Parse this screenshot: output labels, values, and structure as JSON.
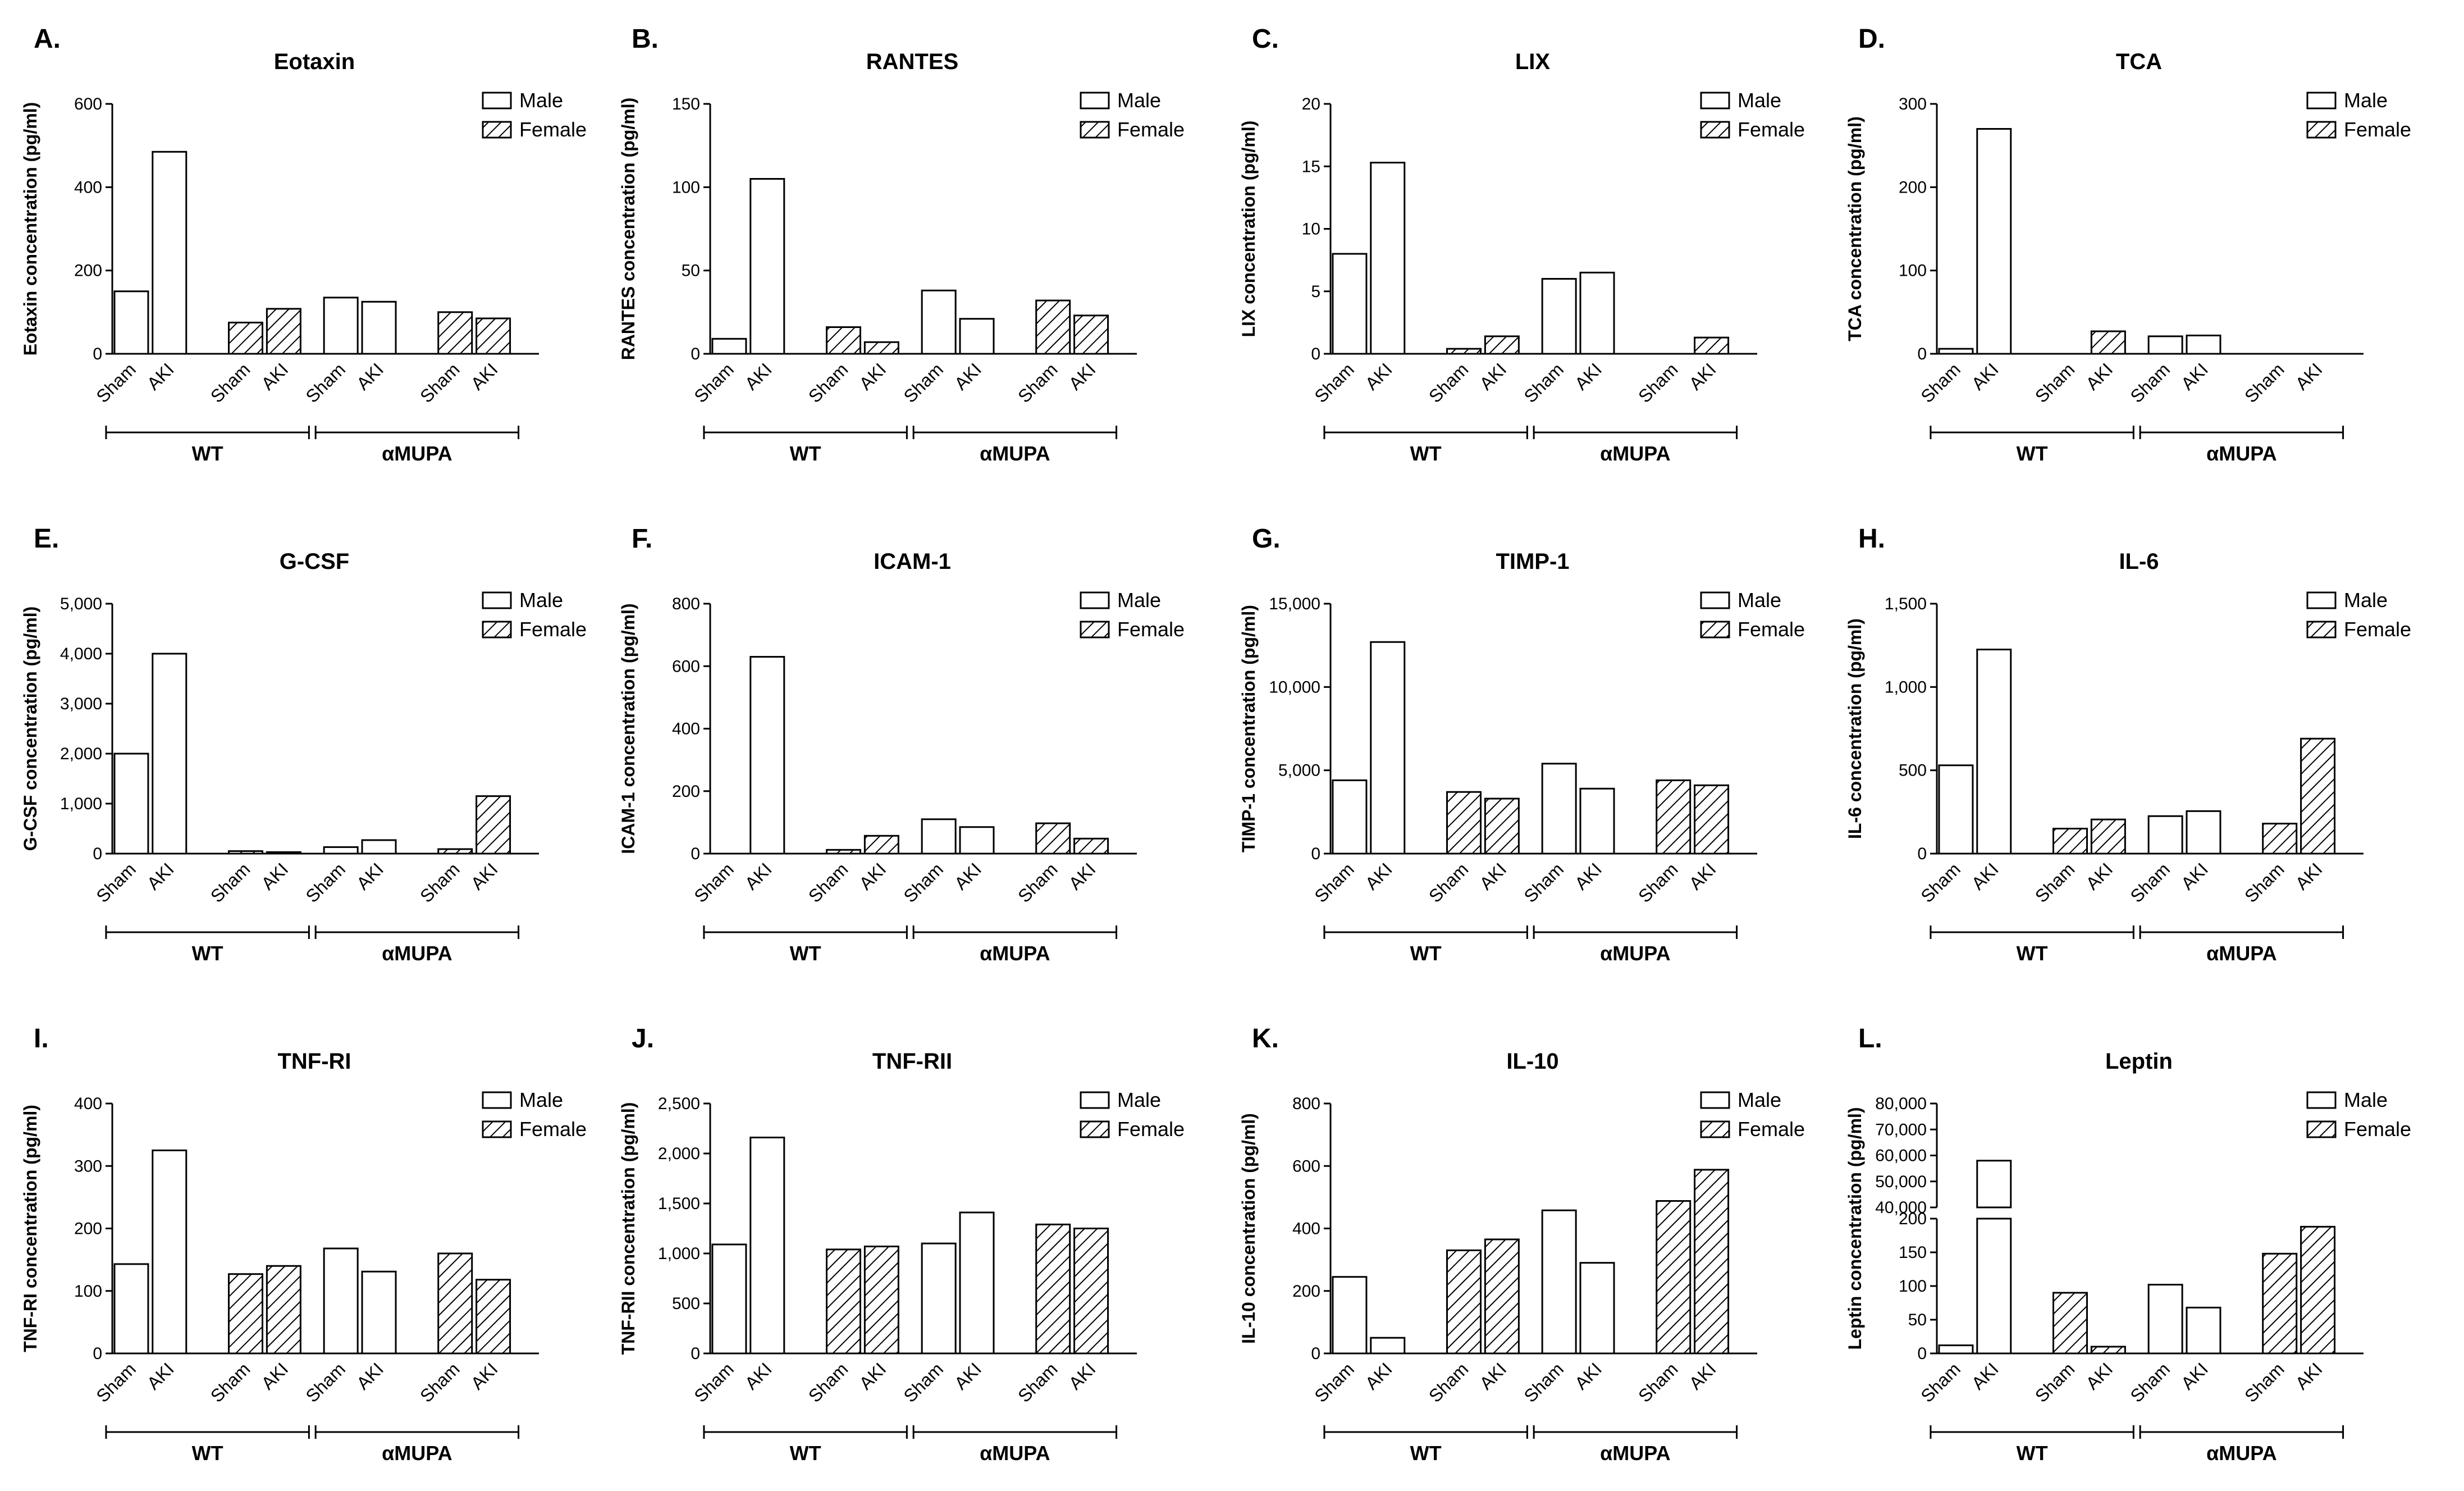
{
  "legend": {
    "male": "Male",
    "female": "Female",
    "male_color": "#ffffff",
    "female_pattern": "hatch"
  },
  "groups": [
    "WT",
    "αMUPA"
  ],
  "chart_data": [
    {
      "id": "A",
      "panel_label": "A.",
      "type": "bar",
      "title": "Eotaxin",
      "ylabel": "Eotaxin concentration (pg/ml)",
      "ylim": [
        0,
        600
      ],
      "yticks": [
        "0",
        "200",
        "400",
        "600"
      ],
      "categories": [
        "Sham",
        "AKI",
        "Sham",
        "AKI",
        "Sham",
        "AKI",
        "Sham",
        "AKI"
      ],
      "sex": [
        "Male",
        "Male",
        "Female",
        "Female",
        "Male",
        "Male",
        "Female",
        "Female"
      ],
      "values": [
        150,
        485,
        75,
        108,
        135,
        125,
        100,
        85
      ]
    },
    {
      "id": "B",
      "panel_label": "B.",
      "type": "bar",
      "title": "RANTES",
      "ylabel": "RANTES concentration (pg/ml)",
      "ylim": [
        0,
        150
      ],
      "yticks": [
        "0",
        "50",
        "100",
        "150"
      ],
      "categories": [
        "Sham",
        "AKI",
        "Sham",
        "AKI",
        "Sham",
        "AKI",
        "Sham",
        "AKI"
      ],
      "sex": [
        "Male",
        "Male",
        "Female",
        "Female",
        "Male",
        "Male",
        "Female",
        "Female"
      ],
      "values": [
        9,
        105,
        16,
        7,
        38,
        21,
        32,
        23
      ]
    },
    {
      "id": "C",
      "panel_label": "C.",
      "type": "bar",
      "title": "LIX",
      "ylabel": "LIX concentration (pg/ml)",
      "ylim": [
        0,
        20
      ],
      "yticks": [
        "0",
        "5",
        "10",
        "15",
        "20"
      ],
      "categories": [
        "Sham",
        "AKI",
        "Sham",
        "AKI",
        "Sham",
        "AKI",
        "Sham",
        "AKI"
      ],
      "sex": [
        "Male",
        "Male",
        "Female",
        "Female",
        "Male",
        "Male",
        "Female",
        "Female"
      ],
      "values": [
        8.0,
        15.3,
        0.4,
        1.4,
        6.0,
        6.5,
        0,
        1.3
      ]
    },
    {
      "id": "D",
      "panel_label": "D.",
      "type": "bar",
      "title": "TCA",
      "ylabel": "TCA concentration (pg/ml)",
      "ylim": [
        0,
        300
      ],
      "yticks": [
        "0",
        "100",
        "200",
        "300"
      ],
      "categories": [
        "Sham",
        "AKI",
        "Sham",
        "AKI",
        "Sham",
        "AKI",
        "Sham",
        "AKI"
      ],
      "sex": [
        "Male",
        "Male",
        "Female",
        "Female",
        "Male",
        "Male",
        "Female",
        "Female"
      ],
      "values": [
        6,
        270,
        0,
        27,
        21,
        22,
        0,
        0
      ]
    },
    {
      "id": "E",
      "panel_label": "E.",
      "type": "bar",
      "title": "G-CSF",
      "ylabel": "G-CSF concentration (pg/ml)",
      "ylim": [
        0,
        5000
      ],
      "yticks": [
        "0",
        "1,000",
        "2,000",
        "3,000",
        "4,000",
        "5,000"
      ],
      "categories": [
        "Sham",
        "AKI",
        "Sham",
        "AKI",
        "Sham",
        "AKI",
        "Sham",
        "AKI"
      ],
      "sex": [
        "Male",
        "Male",
        "Female",
        "Female",
        "Male",
        "Male",
        "Female",
        "Female"
      ],
      "values": [
        2000,
        4000,
        50,
        30,
        130,
        270,
        90,
        1150
      ]
    },
    {
      "id": "F",
      "panel_label": "F.",
      "type": "bar",
      "title": "ICAM-1",
      "ylabel": "ICAM-1 concentration (pg/ml)",
      "ylim": [
        0,
        800
      ],
      "yticks": [
        "0",
        "200",
        "400",
        "600",
        "800"
      ],
      "categories": [
        "Sham",
        "AKI",
        "Sham",
        "AKI",
        "Sham",
        "AKI",
        "Sham",
        "AKI"
      ],
      "sex": [
        "Male",
        "Male",
        "Female",
        "Female",
        "Male",
        "Male",
        "Female",
        "Female"
      ],
      "values": [
        0,
        630,
        12,
        57,
        110,
        85,
        97,
        48
      ]
    },
    {
      "id": "G",
      "panel_label": "G.",
      "type": "bar",
      "title": "TIMP-1",
      "ylabel": "TIMP-1 concentration (pg/ml)",
      "ylim": [
        0,
        15000
      ],
      "yticks": [
        "0",
        "5,000",
        "10,000",
        "15,000"
      ],
      "categories": [
        "Sham",
        "AKI",
        "Sham",
        "AKI",
        "Sham",
        "AKI",
        "Sham",
        "AKI"
      ],
      "sex": [
        "Male",
        "Male",
        "Female",
        "Female",
        "Male",
        "Male",
        "Female",
        "Female"
      ],
      "values": [
        4400,
        12700,
        3700,
        3300,
        5400,
        3900,
        4400,
        4100
      ]
    },
    {
      "id": "H",
      "panel_label": "H.",
      "type": "bar",
      "title": "IL-6",
      "ylabel": "IL-6 concentration (pg/ml)",
      "ylim": [
        0,
        1500
      ],
      "yticks": [
        "0",
        "500",
        "1,000",
        "1,500"
      ],
      "categories": [
        "Sham",
        "AKI",
        "Sham",
        "AKI",
        "Sham",
        "AKI",
        "Sham",
        "AKI"
      ],
      "sex": [
        "Male",
        "Male",
        "Female",
        "Female",
        "Male",
        "Male",
        "Female",
        "Female"
      ],
      "values": [
        530,
        1225,
        150,
        205,
        225,
        255,
        180,
        690
      ]
    },
    {
      "id": "I",
      "panel_label": "I.",
      "type": "bar",
      "title": "TNF-RI",
      "ylabel": "TNF-RI concentration (pg/ml)",
      "ylim": [
        0,
        400
      ],
      "yticks": [
        "0",
        "100",
        "200",
        "300",
        "400"
      ],
      "categories": [
        "Sham",
        "AKI",
        "Sham",
        "AKI",
        "Sham",
        "AKI",
        "Sham",
        "AKI"
      ],
      "sex": [
        "Male",
        "Male",
        "Female",
        "Female",
        "Male",
        "Male",
        "Female",
        "Female"
      ],
      "values": [
        143,
        325,
        127,
        140,
        168,
        131,
        160,
        118
      ]
    },
    {
      "id": "J",
      "panel_label": "J.",
      "type": "bar",
      "title": "TNF-RII",
      "ylabel": "TNF-RII concentration (pg/ml)",
      "ylim": [
        0,
        2500
      ],
      "yticks": [
        "0",
        "500",
        "1,000",
        "1,500",
        "2,000",
        "2,500"
      ],
      "categories": [
        "Sham",
        "AKI",
        "Sham",
        "AKI",
        "Sham",
        "AKI",
        "Sham",
        "AKI"
      ],
      "sex": [
        "Male",
        "Male",
        "Female",
        "Female",
        "Male",
        "Male",
        "Female",
        "Female"
      ],
      "values": [
        1090,
        2160,
        1040,
        1070,
        1100,
        1410,
        1290,
        1250
      ]
    },
    {
      "id": "K",
      "panel_label": "K.",
      "type": "bar",
      "title": "IL-10",
      "ylabel": "IL-10 concentration (pg/ml)",
      "ylim": [
        0,
        800
      ],
      "yticks": [
        "0",
        "200",
        "400",
        "600",
        "800"
      ],
      "categories": [
        "Sham",
        "AKI",
        "Sham",
        "AKI",
        "Sham",
        "AKI",
        "Sham",
        "AKI"
      ],
      "sex": [
        "Male",
        "Male",
        "Female",
        "Female",
        "Male",
        "Male",
        "Female",
        "Female"
      ],
      "values": [
        245,
        50,
        330,
        365,
        458,
        290,
        488,
        588
      ]
    },
    {
      "id": "L",
      "panel_label": "L.",
      "type": "bar",
      "title": "Leptin",
      "ylabel": "Leptin concentration (pg/ml)",
      "axis_break": true,
      "ylim": [
        0,
        80000
      ],
      "ylim_lower": [
        0,
        200
      ],
      "ylim_upper": [
        40000,
        80000
      ],
      "yticks_lower": [
        "0",
        "50",
        "100",
        "150",
        "200"
      ],
      "yticks_upper": [
        "40,000",
        "50,000",
        "60,000",
        "70,000",
        "80,000"
      ],
      "categories": [
        "Sham",
        "AKI",
        "Sham",
        "AKI",
        "Sham",
        "AKI",
        "Sham",
        "AKI"
      ],
      "sex": [
        "Male",
        "Male",
        "Female",
        "Female",
        "Male",
        "Male",
        "Female",
        "Female"
      ],
      "values": [
        12,
        58000,
        90,
        10,
        102,
        68,
        148,
        188
      ]
    }
  ]
}
